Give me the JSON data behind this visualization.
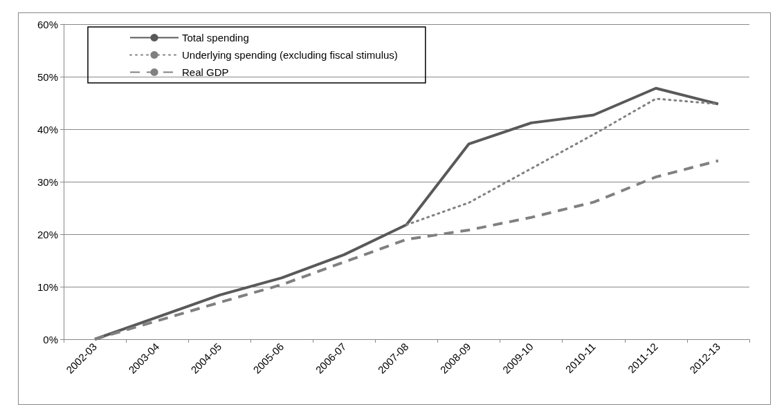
{
  "chart_data": {
    "type": "line",
    "categories": [
      "2002-03",
      "2003-04",
      "2004-05",
      "2005-06",
      "2006-07",
      "2007-08",
      "2008-09",
      "2009-10",
      "2010-11",
      "2011-12",
      "2012-13"
    ],
    "series": [
      {
        "name": "Total spending",
        "color": "#595959",
        "line_style": "solid",
        "values": [
          0,
          4.2,
          8.4,
          11.7,
          16.1,
          21.8,
          37.2,
          41.2,
          42.7,
          47.8,
          44.8
        ]
      },
      {
        "name": "Underlying spending (excluding fiscal stimulus)",
        "color": "#808080",
        "line_style": "dotted",
        "values": [
          null,
          null,
          null,
          null,
          null,
          21.8,
          26.0,
          32.5,
          39.0,
          45.8,
          44.8
        ]
      },
      {
        "name": "Real GDP",
        "color": "#808080",
        "line_style": "dashed",
        "values": [
          0,
          3.5,
          7.0,
          10.4,
          14.7,
          19.0,
          20.8,
          23.2,
          26.1,
          30.9,
          34.0
        ]
      }
    ],
    "ylim": [
      0,
      60
    ],
    "yticks": [
      {
        "value": 0,
        "label": "0%"
      },
      {
        "value": 10,
        "label": "10%"
      },
      {
        "value": 20,
        "label": "20%"
      },
      {
        "value": 30,
        "label": "30%"
      },
      {
        "value": 40,
        "label": "40%"
      },
      {
        "value": 50,
        "label": "50%"
      },
      {
        "value": 60,
        "label": "60%"
      }
    ],
    "grid": "y",
    "legend": "top left",
    "marker": "none"
  }
}
